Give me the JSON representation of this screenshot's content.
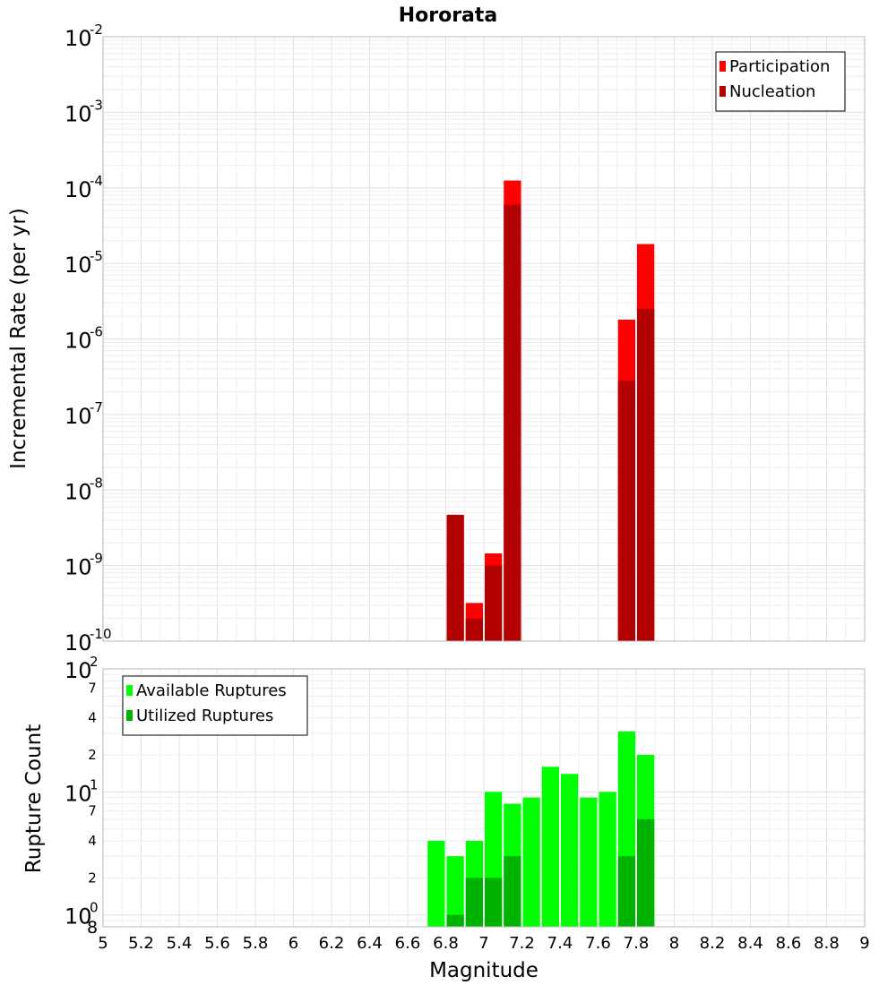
{
  "chart_data": [
    {
      "type": "bar",
      "title": "Hororata",
      "xlabel": "",
      "ylabel": "Incremental Rate (per yr)",
      "yscale": "log",
      "ylim": [
        1e-10,
        0.01
      ],
      "xlim": [
        5,
        9
      ],
      "x_ticks": [
        "5",
        "5.2",
        "5.4",
        "5.6",
        "5.8",
        "6",
        "6.2",
        "6.4",
        "6.6",
        "6.8",
        "7",
        "7.2",
        "7.4",
        "7.6",
        "7.8",
        "8",
        "8.2",
        "8.4",
        "8.6",
        "8.8",
        "9"
      ],
      "y_major_ticks": [
        {
          "value": 1e-10,
          "base": "10",
          "exp": "-10"
        },
        {
          "value": 1e-09,
          "base": "10",
          "exp": "-9"
        },
        {
          "value": 1e-08,
          "base": "10",
          "exp": "-8"
        },
        {
          "value": 1e-07,
          "base": "10",
          "exp": "-7"
        },
        {
          "value": 1e-06,
          "base": "10",
          "exp": "-6"
        },
        {
          "value": 1e-05,
          "base": "10",
          "exp": "-5"
        },
        {
          "value": 0.0001,
          "base": "10",
          "exp": "-4"
        },
        {
          "value": 0.001,
          "base": "10",
          "exp": "-3"
        },
        {
          "value": 0.01,
          "base": "10",
          "exp": "-2"
        }
      ],
      "legend_position": "top-right",
      "series": [
        {
          "name": "Participation",
          "color": "#ff0000",
          "x": [
            6.85,
            6.95,
            7.05,
            7.15,
            7.75,
            7.85
          ],
          "values": [
            4.7e-09,
            3.2e-10,
            1.45e-09,
            0.000125,
            1.8e-06,
            1.8e-05
          ]
        },
        {
          "name": "Nucleation",
          "color": "#b30000",
          "x": [
            6.85,
            6.95,
            7.05,
            7.15,
            7.75,
            7.85
          ],
          "values": [
            4.7e-09,
            2e-10,
            1e-09,
            6e-05,
            2.8e-07,
            2.5e-06
          ]
        }
      ]
    },
    {
      "type": "bar",
      "title": "",
      "xlabel": "Magnitude",
      "ylabel": "Rupture Count",
      "yscale": "log",
      "ylim": [
        0.8,
        100
      ],
      "xlim": [
        5,
        9
      ],
      "x_ticks": [
        "5",
        "5.2",
        "5.4",
        "5.6",
        "5.8",
        "6",
        "6.2",
        "6.4",
        "6.6",
        "6.8",
        "7",
        "7.2",
        "7.4",
        "7.6",
        "7.8",
        "8",
        "8.2",
        "8.4",
        "8.6",
        "8.8",
        "9"
      ],
      "y_major_ticks": [
        {
          "value": 1,
          "base": "10",
          "exp": "0"
        },
        {
          "value": 10,
          "base": "10",
          "exp": "1"
        },
        {
          "value": 100,
          "base": "10",
          "exp": "2"
        }
      ],
      "y_minor_ticks": [
        {
          "value": 0.8,
          "label": "8"
        },
        {
          "value": 2,
          "label": "2"
        },
        {
          "value": 4,
          "label": "4"
        },
        {
          "value": 7,
          "label": "7"
        },
        {
          "value": 20,
          "label": "2"
        },
        {
          "value": 40,
          "label": "4"
        },
        {
          "value": 70,
          "label": "7"
        }
      ],
      "legend_position": "top-left",
      "series": [
        {
          "name": "Available Ruptures",
          "color": "#00ff00",
          "x": [
            6.75,
            6.85,
            6.95,
            7.05,
            7.15,
            7.25,
            7.35,
            7.45,
            7.55,
            7.65,
            7.75,
            7.85
          ],
          "values": [
            4,
            3,
            4,
            10,
            8,
            9,
            16,
            14,
            9,
            10,
            31,
            20
          ]
        },
        {
          "name": "Utilized Ruptures",
          "color": "#00b300",
          "x": [
            6.85,
            6.95,
            7.05,
            7.15,
            7.75,
            7.85
          ],
          "values": [
            1,
            2,
            2,
            3,
            3,
            6
          ]
        }
      ]
    }
  ]
}
